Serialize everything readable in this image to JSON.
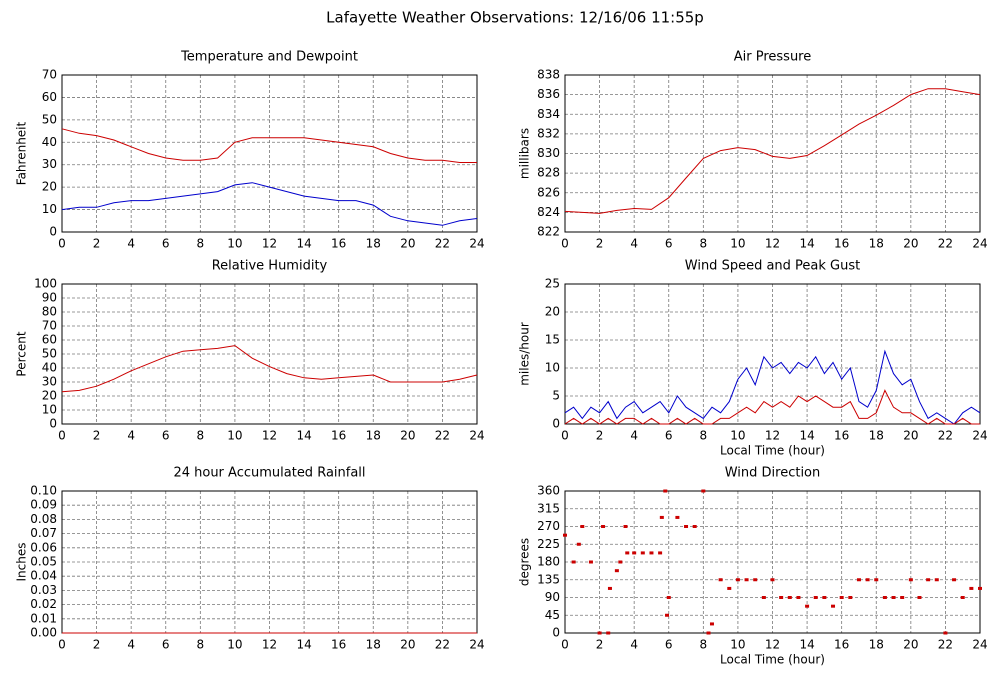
{
  "title": "Lafayette Weather Observations: 12/16/06 11:55p",
  "chart_data": [
    {
      "type": "line",
      "title": "Temperature and Dewpoint",
      "y_label": "Fahrenheit",
      "x": [
        0,
        1,
        2,
        3,
        4,
        5,
        6,
        7,
        8,
        9,
        10,
        11,
        12,
        13,
        14,
        15,
        16,
        17,
        18,
        19,
        20,
        21,
        22,
        23,
        24
      ],
      "series": [
        {
          "color": "#cc0000",
          "values": [
            46,
            44,
            43,
            41,
            38,
            35,
            33,
            32,
            32,
            33,
            40,
            42,
            42,
            42,
            42,
            41,
            40,
            39,
            38,
            35,
            33,
            32,
            32,
            31,
            31
          ]
        },
        {
          "color": "#0000cc",
          "values": [
            10,
            11,
            11,
            13,
            14,
            14,
            15,
            16,
            17,
            18,
            21,
            22,
            20,
            18,
            16,
            15,
            14,
            14,
            12,
            7,
            5,
            4,
            3,
            5,
            6
          ]
        }
      ],
      "xlim": [
        0,
        24
      ],
      "xticks": [
        0,
        2,
        4,
        6,
        8,
        10,
        12,
        14,
        16,
        18,
        20,
        22,
        24
      ],
      "ylim": [
        0,
        70
      ],
      "yticks": [
        0,
        10,
        20,
        30,
        40,
        50,
        60,
        70
      ],
      "grid": true
    },
    {
      "type": "line",
      "title": "Air Pressure",
      "y_label": "millibars",
      "x": [
        0,
        1,
        2,
        3,
        4,
        5,
        6,
        7,
        8,
        9,
        10,
        11,
        12,
        13,
        14,
        15,
        16,
        17,
        18,
        19,
        20,
        21,
        22,
        23,
        24
      ],
      "series": [
        {
          "color": "#cc0000",
          "values": [
            824.1,
            824.0,
            823.9,
            824.2,
            824.4,
            824.3,
            825.5,
            827.5,
            829.5,
            830.3,
            830.6,
            830.4,
            829.7,
            829.5,
            829.8,
            830.8,
            831.9,
            833.0,
            833.9,
            834.9,
            836.0,
            836.6,
            836.6,
            836.3,
            836.0
          ]
        }
      ],
      "xlim": [
        0,
        24
      ],
      "xticks": [
        0,
        2,
        4,
        6,
        8,
        10,
        12,
        14,
        16,
        18,
        20,
        22,
        24
      ],
      "ylim": [
        822,
        838
      ],
      "yticks": [
        822,
        824,
        826,
        828,
        830,
        832,
        834,
        836,
        838
      ],
      "grid": true
    },
    {
      "type": "line",
      "title": "Relative Humidity",
      "y_label": "Percent",
      "x": [
        0,
        1,
        2,
        3,
        4,
        5,
        6,
        7,
        8,
        9,
        10,
        11,
        12,
        13,
        14,
        15,
        16,
        17,
        18,
        19,
        20,
        21,
        22,
        23,
        24
      ],
      "series": [
        {
          "color": "#cc0000",
          "values": [
            23,
            24,
            27,
            32,
            38,
            43,
            48,
            52,
            53,
            54,
            56,
            47,
            41,
            36,
            33,
            32,
            33,
            34,
            35,
            30,
            30,
            30,
            30,
            32,
            35
          ]
        }
      ],
      "xlim": [
        0,
        24
      ],
      "xticks": [
        0,
        2,
        4,
        6,
        8,
        10,
        12,
        14,
        16,
        18,
        20,
        22,
        24
      ],
      "ylim": [
        0,
        100
      ],
      "yticks": [
        0,
        10,
        20,
        30,
        40,
        50,
        60,
        70,
        80,
        90,
        100
      ],
      "grid": true
    },
    {
      "type": "line",
      "title": "Wind Speed and Peak Gust",
      "y_label": "miles/hour",
      "x_label": "Local Time (hour)",
      "x": [
        0,
        0.5,
        1,
        1.5,
        2,
        2.5,
        3,
        3.5,
        4,
        4.5,
        5,
        5.5,
        6,
        6.5,
        7,
        7.5,
        8,
        8.5,
        9,
        9.5,
        10,
        10.5,
        11,
        11.5,
        12,
        12.5,
        13,
        13.5,
        14,
        14.5,
        15,
        15.5,
        16,
        16.5,
        17,
        17.5,
        18,
        18.5,
        19,
        19.5,
        20,
        20.5,
        21,
        21.5,
        22,
        22.5,
        23,
        23.5,
        24
      ],
      "series": [
        {
          "color": "#0000cc",
          "values": [
            2,
            3,
            1,
            3,
            2,
            4,
            1,
            3,
            4,
            2,
            3,
            4,
            2,
            5,
            3,
            2,
            1,
            3,
            2,
            4,
            8,
            10,
            7,
            12,
            10,
            11,
            9,
            11,
            10,
            12,
            9,
            11,
            8,
            10,
            4,
            3,
            6,
            13,
            9,
            7,
            8,
            4,
            1,
            2,
            1,
            0,
            2,
            3,
            2
          ]
        },
        {
          "color": "#cc0000",
          "values": [
            0,
            1,
            0,
            1,
            0,
            1,
            0,
            1,
            1,
            0,
            1,
            0,
            0,
            1,
            0,
            1,
            0,
            0,
            1,
            1,
            2,
            3,
            2,
            4,
            3,
            4,
            3,
            5,
            4,
            5,
            4,
            3,
            3,
            4,
            1,
            1,
            2,
            6,
            3,
            2,
            2,
            1,
            0,
            1,
            0,
            0,
            1,
            0,
            0
          ]
        }
      ],
      "xlim": [
        0,
        24
      ],
      "xticks": [
        0,
        2,
        4,
        6,
        8,
        10,
        12,
        14,
        16,
        18,
        20,
        22,
        24
      ],
      "ylim": [
        0,
        25
      ],
      "yticks": [
        0,
        5,
        10,
        15,
        20,
        25
      ],
      "grid": true
    },
    {
      "type": "line",
      "title": "24 hour Accumulated Rainfall",
      "y_label": "Inches",
      "x": [
        0,
        1,
        2,
        3,
        4,
        5,
        6,
        7,
        8,
        9,
        10,
        11,
        12,
        13,
        14,
        15,
        16,
        17,
        18,
        19,
        20,
        21,
        22,
        23,
        24
      ],
      "series": [
        {
          "color": "#cc0000",
          "values": [
            0,
            0,
            0,
            0,
            0,
            0,
            0,
            0,
            0,
            0,
            0,
            0,
            0,
            0,
            0,
            0,
            0,
            0,
            0,
            0,
            0,
            0,
            0,
            0,
            0
          ]
        }
      ],
      "xlim": [
        0,
        24
      ],
      "xticks": [
        0,
        2,
        4,
        6,
        8,
        10,
        12,
        14,
        16,
        18,
        20,
        22,
        24
      ],
      "ylim": [
        0,
        0.1
      ],
      "yticks": [
        {
          "value": 0,
          "label": "0.00"
        },
        {
          "value": 0.01,
          "label": "0.01"
        },
        {
          "value": 0.02,
          "label": "0.02"
        },
        {
          "value": 0.03,
          "label": "0.03"
        },
        {
          "value": 0.04,
          "label": "0.04"
        },
        {
          "value": 0.05,
          "label": "0.05"
        },
        {
          "value": 0.06,
          "label": "0.06"
        },
        {
          "value": 0.07,
          "label": "0.07"
        },
        {
          "value": 0.08,
          "label": "0.08"
        },
        {
          "value": 0.09,
          "label": "0.09"
        },
        {
          "value": 0.1,
          "label": "0.10"
        }
      ],
      "grid": true
    },
    {
      "type": "scatter",
      "title": "Wind Direction",
      "y_label": "degrees",
      "x_label": "Local Time (hour)",
      "color": "#cc0000",
      "x": [
        0,
        0.5,
        0.8,
        1,
        1.5,
        2,
        2.2,
        2.5,
        2.6,
        3,
        3.2,
        3.5,
        3.6,
        4,
        4.5,
        5,
        5.5,
        5.6,
        5.8,
        5.9,
        6,
        6.5,
        7,
        7.5,
        8,
        8.3,
        8.5,
        9,
        9.5,
        10,
        10.5,
        11,
        11.5,
        12,
        12.5,
        13,
        13.5,
        14,
        14.5,
        15,
        15.5,
        16,
        16.5,
        17,
        17.5,
        18,
        18.5,
        19,
        19.5,
        20,
        20.5,
        21,
        21.5,
        22,
        22.5,
        23,
        23.5,
        24
      ],
      "values": [
        248,
        180,
        225,
        270,
        180,
        0,
        270,
        0,
        113,
        158,
        180,
        270,
        203,
        203,
        203,
        203,
        203,
        293,
        360,
        45,
        90,
        293,
        270,
        270,
        360,
        0,
        23,
        135,
        113,
        135,
        135,
        135,
        90,
        135,
        90,
        90,
        90,
        68,
        90,
        90,
        68,
        90,
        90,
        135,
        135,
        135,
        90,
        90,
        90,
        135,
        90,
        135,
        135,
        0,
        135,
        90,
        113,
        113
      ],
      "xlim": [
        0,
        24
      ],
      "xticks": [
        0,
        2,
        4,
        6,
        8,
        10,
        12,
        14,
        16,
        18,
        20,
        22,
        24
      ],
      "ylim": [
        0,
        360
      ],
      "yticks": [
        0,
        45,
        90,
        135,
        180,
        225,
        270,
        315,
        360
      ],
      "grid": true
    }
  ]
}
